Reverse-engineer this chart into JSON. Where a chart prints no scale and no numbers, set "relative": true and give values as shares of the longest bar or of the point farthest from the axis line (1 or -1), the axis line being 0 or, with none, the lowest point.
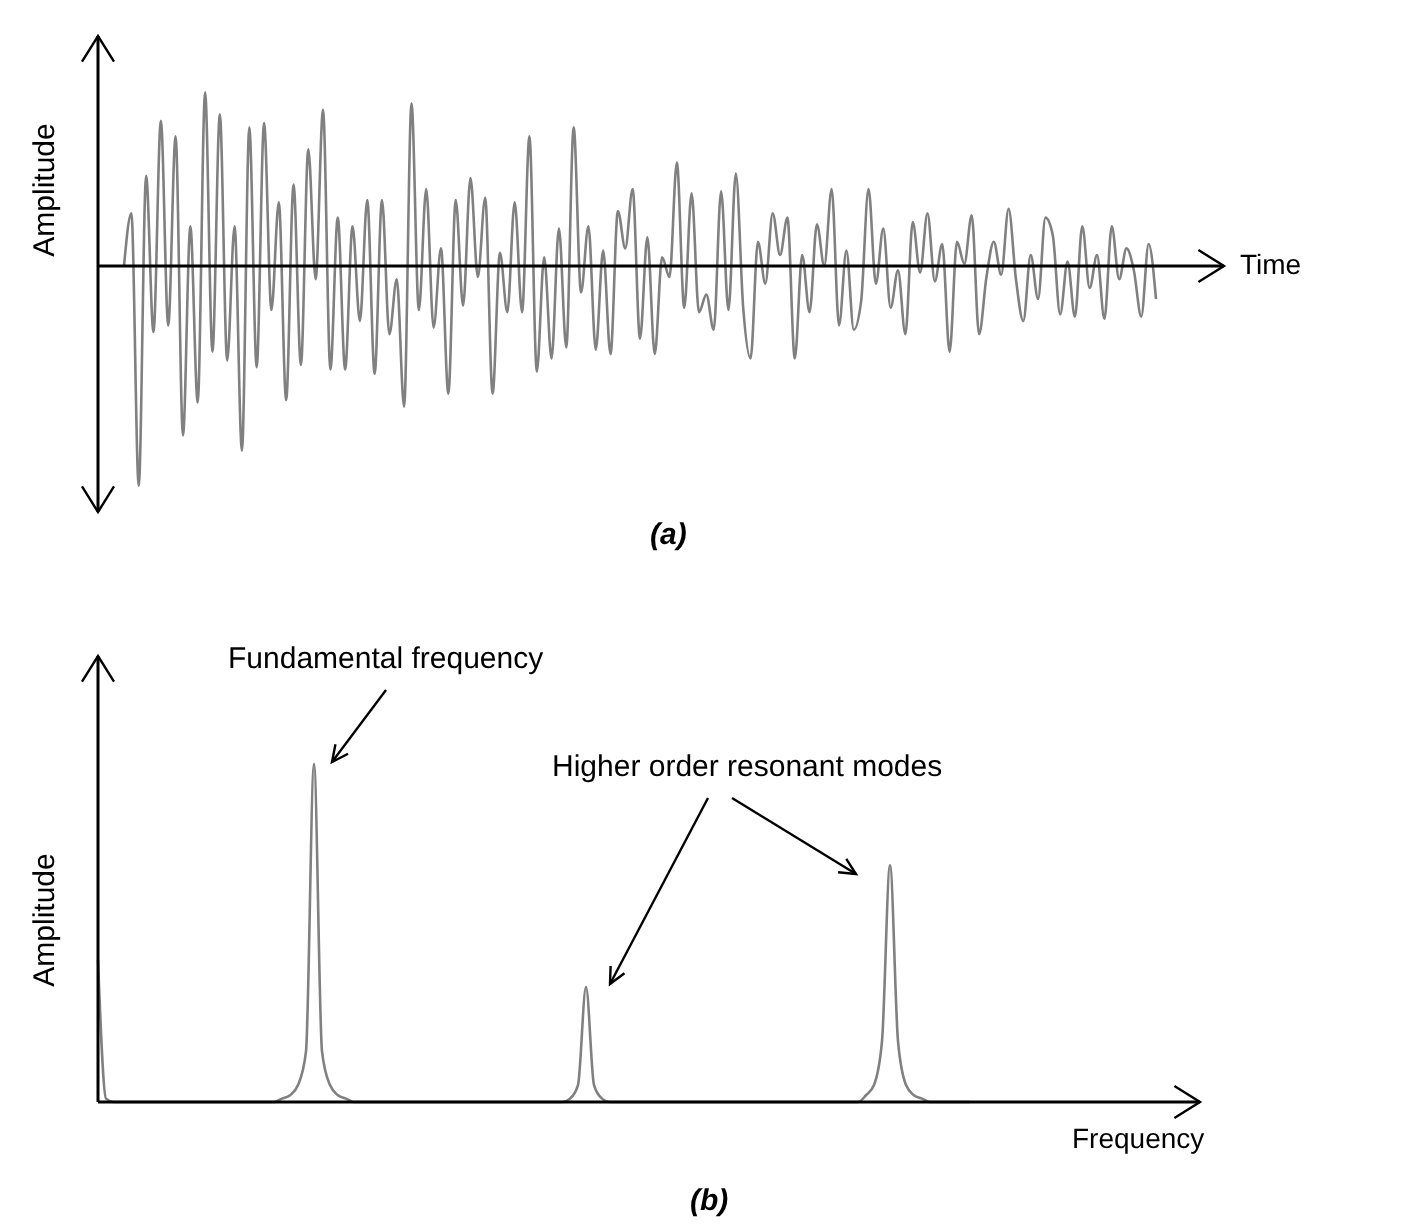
{
  "chart_data": [
    {
      "type": "line",
      "relative": true,
      "xlabel": "Time",
      "ylabel": "Amplitude",
      "color": "#808080",
      "annotations": [
        "(a)"
      ],
      "categories": [
        null,
        null,
        null,
        null,
        null,
        null,
        null,
        null,
        null,
        null,
        null,
        null,
        null,
        null,
        null,
        null,
        null,
        null,
        null,
        null,
        null,
        null,
        null,
        null,
        null,
        null,
        null,
        null,
        null,
        null,
        null,
        null,
        null,
        null,
        null,
        null,
        null,
        null,
        null,
        null,
        null,
        null,
        null,
        null,
        null,
        null,
        null,
        null,
        null,
        null,
        null,
        null,
        null,
        null,
        null,
        null,
        null,
        null,
        null,
        null,
        null,
        null,
        null,
        null,
        null,
        null,
        null,
        null,
        null,
        null,
        null,
        null,
        null,
        null,
        null,
        null,
        null,
        null,
        null,
        null,
        null,
        null,
        null,
        null,
        null,
        null,
        null,
        null,
        null,
        null,
        null,
        null,
        null,
        null,
        null,
        null,
        null,
        null,
        null,
        null,
        null,
        null,
        null,
        null,
        null,
        null,
        null,
        null,
        null,
        null,
        null,
        null,
        null,
        null,
        null,
        null,
        null,
        null,
        null,
        null,
        null,
        null,
        null,
        null,
        null,
        null,
        null,
        null,
        null,
        null,
        null,
        null,
        null,
        null,
        null,
        null,
        null,
        null,
        null,
        null,
        null
      ],
      "values": [
        0,
        0.24,
        -1,
        0.41,
        -0.3,
        0.66,
        -0.27,
        0.59,
        -0.77,
        0.18,
        -0.62,
        0.79,
        -0.39,
        0.69,
        -0.43,
        0.18,
        -0.84,
        0.63,
        -0.46,
        0.65,
        -0.2,
        0.29,
        -0.61,
        0.37,
        -0.45,
        0.53,
        -0.06,
        0.71,
        -0.47,
        0.22,
        -0.47,
        0.18,
        -0.25,
        0.3,
        -0.49,
        0.3,
        -0.31,
        -0.06,
        -0.64,
        0.74,
        -0.2,
        0.35,
        -0.28,
        0.08,
        -0.58,
        0.3,
        -0.18,
        0.4,
        -0.05,
        0.31,
        -0.58,
        0.06,
        -0.21,
        0.29,
        -0.21,
        0.59,
        -0.48,
        0.04,
        -0.42,
        0.17,
        -0.37,
        0.63,
        -0.12,
        0.18,
        -0.38,
        0.07,
        -0.4,
        0.25,
        0.08,
        0.35,
        -0.33,
        0.13,
        -0.4,
        0.04,
        -0.05,
        0.47,
        -0.19,
        0.33,
        -0.21,
        -0.13,
        -0.29,
        0.34,
        -0.2,
        0.42,
        -0.19,
        -0.42,
        0.11,
        -0.08,
        0.24,
        0.05,
        0.22,
        -0.42,
        0.05,
        -0.21,
        0.19,
        0,
        0.35,
        -0.27,
        0.07,
        -0.29,
        -0.16,
        0.35,
        -0.08,
        0.17,
        -0.19,
        -0.02,
        -0.31,
        0.2,
        -0.03,
        0.24,
        -0.07,
        0.1,
        -0.39,
        0.11,
        0.01,
        0.23,
        -0.31,
        -0.05,
        0.11,
        -0.04,
        0.26,
        -0.06,
        -0.25,
        0.05,
        -0.15,
        0.22,
        0.14,
        -0.22,
        0.02,
        -0.23,
        0.18,
        -0.1,
        0.05,
        -0.24,
        0.18,
        -0.06,
        0.08,
        -0.02,
        -0.23,
        0.1,
        -0.15
      ]
    },
    {
      "type": "line",
      "relative": true,
      "xlabel": "Frequency",
      "ylabel": "Amplitude",
      "color": "#808080",
      "annotations": [
        "Fundamental frequency",
        "Higher order resonant modes",
        "(b)"
      ],
      "categories": [
        null,
        null,
        null,
        null,
        null,
        null,
        null,
        null,
        null,
        null,
        null,
        null,
        null,
        null,
        null,
        null,
        null,
        null,
        null,
        null,
        null,
        null,
        null,
        null,
        null,
        null,
        null,
        null,
        null,
        null,
        null,
        null,
        null,
        null,
        null,
        null,
        null,
        null,
        null,
        null,
        null,
        null,
        null,
        null,
        null,
        null,
        null,
        null,
        null,
        null,
        null,
        null,
        null,
        null,
        null,
        null,
        null,
        null,
        null,
        null,
        null,
        null,
        null,
        null,
        null,
        null,
        null,
        null,
        null,
        null,
        null,
        null,
        null,
        null,
        null,
        null,
        null,
        null,
        null,
        null,
        null,
        null,
        null,
        null,
        null,
        null,
        null,
        null,
        null,
        null,
        null,
        null,
        null,
        null,
        null,
        null,
        null,
        null,
        null,
        null,
        null,
        null,
        null,
        null,
        null,
        null,
        null,
        null,
        null,
        null
      ],
      "values": [
        0.42,
        0.01,
        0,
        0,
        0,
        0,
        0,
        0,
        0,
        0,
        0,
        0,
        0,
        0,
        0,
        0,
        0,
        0,
        0,
        0,
        0,
        0,
        0,
        0.01,
        0.02,
        0.05,
        0.15,
        1,
        0.15,
        0.05,
        0.02,
        0.01,
        0,
        0,
        0,
        0,
        0,
        0,
        0,
        0,
        0,
        0,
        0,
        0,
        0,
        0,
        0,
        0,
        0,
        0,
        0,
        0,
        0,
        0,
        0,
        0,
        0,
        0,
        0,
        0.01,
        0.05,
        0.34,
        0.05,
        0.01,
        0,
        0,
        0,
        0,
        0,
        0,
        0,
        0,
        0,
        0,
        0,
        0,
        0,
        0,
        0,
        0,
        0,
        0,
        0,
        0,
        0,
        0,
        0,
        0,
        0,
        0,
        0,
        0,
        0,
        0,
        0,
        0,
        0.02,
        0.05,
        0.18,
        0.7,
        0.18,
        0.05,
        0.02,
        0.01,
        0,
        0,
        0,
        0,
        0,
        0
      ]
    }
  ]
}
